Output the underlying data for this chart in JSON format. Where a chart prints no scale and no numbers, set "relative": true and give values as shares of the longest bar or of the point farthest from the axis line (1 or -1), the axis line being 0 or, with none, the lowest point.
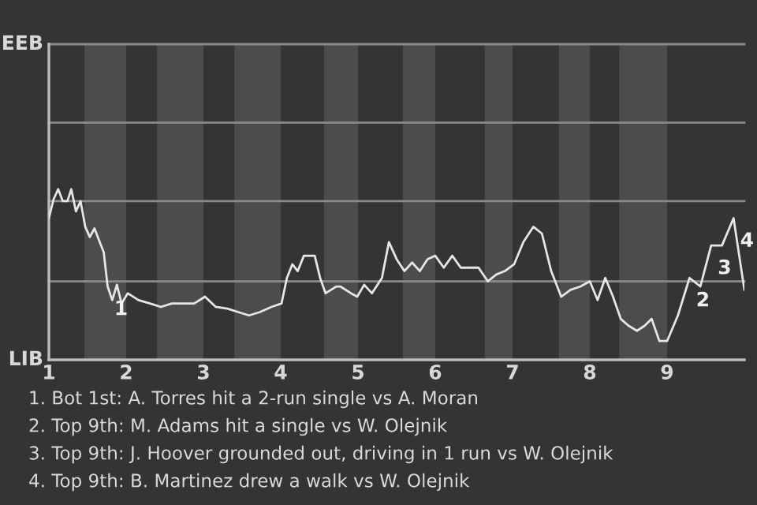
{
  "chart_data": {
    "type": "line",
    "x": [
      1,
      1.06,
      1.12,
      1.18,
      1.24,
      1.29,
      1.35,
      1.41,
      1.47,
      1.53,
      1.59,
      1.65,
      1.71,
      1.76,
      1.82,
      1.88,
      1.94,
      2.02,
      2.16,
      2.31,
      2.45,
      2.59,
      2.73,
      2.88,
      3.02,
      3.16,
      3.31,
      3.45,
      3.59,
      3.73,
      3.88,
      4.01,
      4.08,
      4.15,
      4.22,
      4.3,
      4.44,
      4.51,
      4.58,
      4.65,
      4.72,
      4.77,
      4.91,
      4.99,
      5.08,
      5.18,
      5.31,
      5.4,
      5.5,
      5.6,
      5.7,
      5.8,
      5.9,
      6,
      6.11,
      6.22,
      6.33,
      6.56,
      6.68,
      6.79,
      6.9,
      7.02,
      7.14,
      7.27,
      7.38,
      7.5,
      7.63,
      7.75,
      7.88,
      8,
      8.1,
      8.2,
      8.3,
      8.4,
      8.5,
      8.61,
      8.71,
      8.8,
      8.9,
      9,
      9.14,
      9.29,
      9.43,
      9.57,
      9.71,
      9.86,
      10
    ],
    "series": [
      {
        "color": "#e6e6e6",
        "values": [
          0.83,
          0.94,
          1,
          0.93,
          0.93,
          1,
          0.87,
          0.93,
          0.78,
          0.72,
          0.77,
          0.7,
          0.63,
          0.43,
          0.35,
          0.44,
          0.33,
          0.39,
          0.35,
          0.33,
          0.31,
          0.33,
          0.33,
          0.33,
          0.37,
          0.31,
          0.3,
          0.28,
          0.26,
          0.28,
          0.31,
          0.33,
          0.48,
          0.56,
          0.52,
          0.61,
          0.61,
          0.48,
          0.39,
          0.41,
          0.43,
          0.43,
          0.39,
          0.37,
          0.44,
          0.39,
          0.48,
          0.69,
          0.59,
          0.52,
          0.57,
          0.52,
          0.59,
          0.61,
          0.54,
          0.61,
          0.54,
          0.54,
          0.46,
          0.5,
          0.52,
          0.56,
          0.69,
          0.78,
          0.74,
          0.52,
          0.37,
          0.41,
          0.43,
          0.46,
          0.35,
          0.48,
          0.37,
          0.24,
          0.2,
          0.17,
          0.2,
          0.24,
          0.11,
          0.11,
          0.26,
          0.48,
          0.43,
          0.67,
          0.67,
          0.83,
          0.41
        ]
      }
    ],
    "relative": true,
    "xlim": [
      1,
      10
    ],
    "xticks": [
      1,
      2,
      3,
      4,
      5,
      6,
      7,
      8,
      9
    ],
    "ref_lines": [
      {
        "axis": "y",
        "value": 0.46,
        "color": "#8a8a8a"
      },
      {
        "axis": "y",
        "value": 0.93,
        "color": "#8a8a8a"
      },
      {
        "axis": "y",
        "value": 1.39,
        "color": "#8a8a8a"
      },
      {
        "axis": "y",
        "value": 1.85,
        "color": "#8a8a8a"
      }
    ],
    "bands": [
      {
        "axis": "x",
        "from": 1.46,
        "to": 2,
        "color": "#4d4c4b"
      },
      {
        "axis": "x",
        "from": 2.4,
        "to": 3,
        "color": "#4d4c4b"
      },
      {
        "axis": "x",
        "from": 3.4,
        "to": 4,
        "color": "#4d4c4b"
      },
      {
        "axis": "x",
        "from": 4.56,
        "to": 5,
        "color": "#4d4c4b"
      },
      {
        "axis": "x",
        "from": 5.58,
        "to": 6,
        "color": "#4d4c4b"
      },
      {
        "axis": "x",
        "from": 6.64,
        "to": 7,
        "color": "#4d4c4b"
      },
      {
        "axis": "x",
        "from": 7.6,
        "to": 8,
        "color": "#4d4c4b"
      },
      {
        "axis": "x",
        "from": 8.38,
        "to": 9,
        "color": "#4d4c4b"
      }
    ],
    "annotations": [
      "EEB",
      "LIB",
      {
        "text": "1",
        "x": 1.76,
        "y": 0.43
      },
      {
        "text": "2",
        "x": 9.29,
        "y": 0.48
      },
      {
        "text": "3",
        "x": 9.57,
        "y": 0.67
      },
      {
        "text": "4",
        "x": 9.86,
        "y": 0.83
      },
      "1. Bot 1st: A. Torres hit a 2-run single vs A. Moran",
      "2. Top 9th: M. Adams hit a single vs W. Olejnik",
      "3. Top 9th: J. Hoover grounded out, driving in 1 run vs W. Olejnik",
      "4. Top 9th: B. Martinez drew a walk vs W. Olejnik"
    ],
    "marker": "none",
    "line_style": "solid",
    "legend": false
  }
}
